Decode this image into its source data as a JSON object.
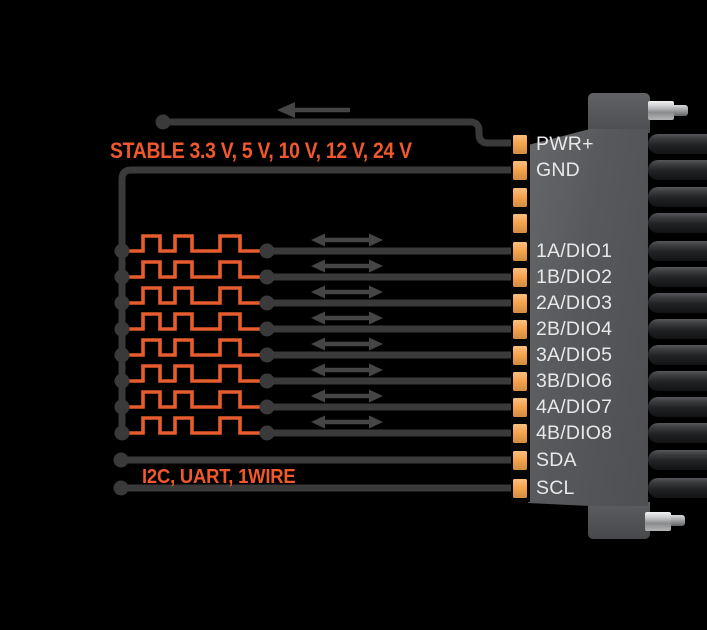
{
  "colors": {
    "background": "#000000",
    "accent_orange": "#f1582c",
    "wave_orange": "#e65c2e",
    "pin_orange": "#f6a44c",
    "wire_gray": "#3a3a3a",
    "arrow_gray": "#454545",
    "connector_gray": "#57585b",
    "label_white": "#e8e8e8"
  },
  "annotations": {
    "power_rail": "STABLE 3.3 V, 5 V, 10 V, 12 V, 24 V",
    "serial_bus": "I2C, UART, 1WIRE"
  },
  "icons": {
    "power_direction": "arrow-left",
    "dio_direction": "arrow-left-right"
  },
  "connector": {
    "pins": [
      {
        "label": "PWR+",
        "type": "power"
      },
      {
        "label": "GND",
        "type": "ground"
      },
      {
        "label": "",
        "type": "nc"
      },
      {
        "label": "",
        "type": "nc"
      },
      {
        "label": "1A/DIO1",
        "type": "dio"
      },
      {
        "label": "1B/DIO2",
        "type": "dio"
      },
      {
        "label": "2A/DIO3",
        "type": "dio"
      },
      {
        "label": "2B/DIO4",
        "type": "dio"
      },
      {
        "label": "3A/DIO5",
        "type": "dio"
      },
      {
        "label": "3B/DIO6",
        "type": "dio"
      },
      {
        "label": "4A/DIO7",
        "type": "dio"
      },
      {
        "label": "4B/DIO8",
        "type": "dio"
      },
      {
        "label": "SDA",
        "type": "i2c"
      },
      {
        "label": "SCL",
        "type": "i2c"
      }
    ]
  }
}
